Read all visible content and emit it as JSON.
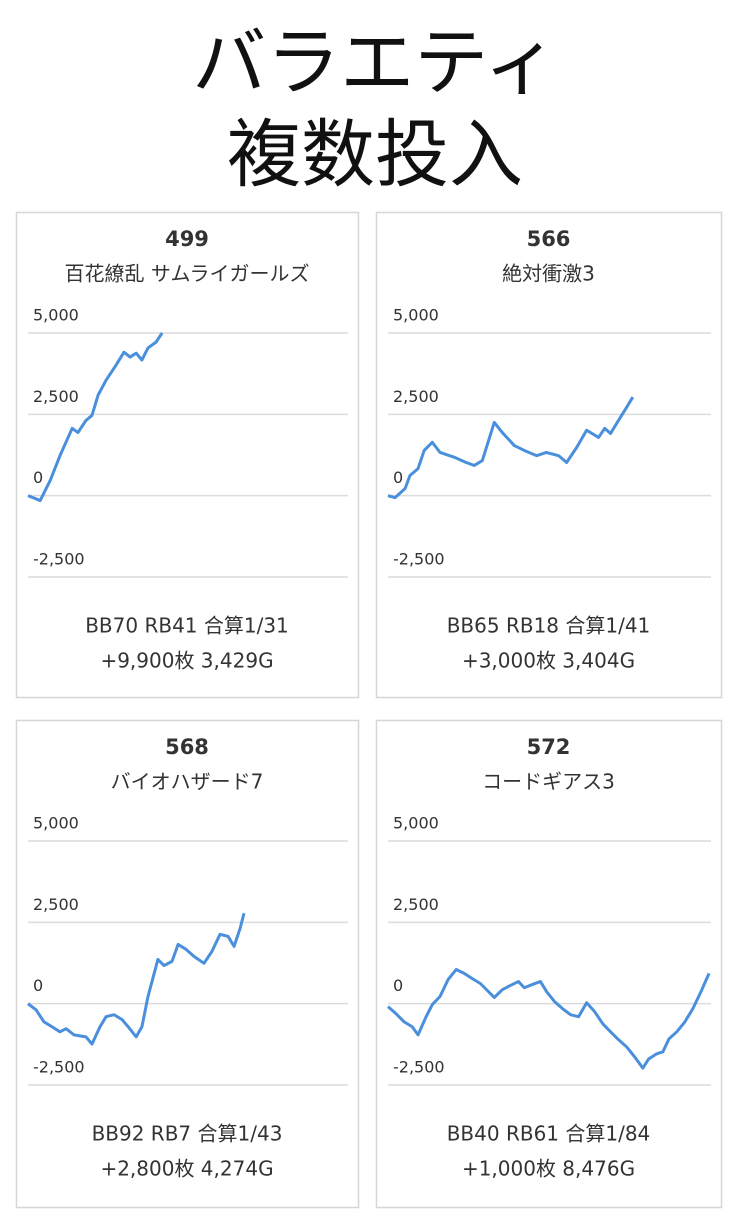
{
  "header": {
    "lines": [
      "バラエティ",
      "複数投入"
    ]
  },
  "chart_data": [
    {
      "type": "line",
      "title": "499",
      "subtitle": "百花繚乱 サムライガールズ",
      "annotations": [
        "BB70 RB41 合算1/31",
        "+9,900枚 3,429G"
      ],
      "color": "#4a8fdc",
      "grid": true,
      "xlim": [
        0,
        100
      ],
      "ylim": [
        -2500,
        5000
      ],
      "yticks": [
        {
          "value": -2500,
          "label": "-2,500"
        },
        0,
        {
          "value": 2500,
          "label": "2,500"
        },
        {
          "value": 5000,
          "label": "5,000"
        }
      ],
      "x": [
        0,
        3.8,
        6.9,
        10,
        13.8,
        15.6,
        18.1,
        20,
        21.9,
        24.4,
        27.5,
        30,
        31.9,
        33.8,
        35.6,
        37.5,
        40,
        41.9
      ],
      "values": [
        0,
        -150,
        460,
        1230,
        2070,
        1940,
        2310,
        2470,
        3090,
        3550,
        4010,
        4410,
        4260,
        4380,
        4170,
        4540,
        4720,
        5000
      ]
    },
    {
      "type": "line",
      "title": "566",
      "subtitle": "絶対衝激3",
      "annotations": [
        "BB65 RB18 合算1/41",
        "+3,000枚 3,404G"
      ],
      "color": "#4a8fdc",
      "grid": true,
      "xlim": [
        0,
        100
      ],
      "ylim": [
        -2500,
        5000
      ],
      "yticks": [
        {
          "value": -2500,
          "label": "-2,500"
        },
        0,
        {
          "value": 2500,
          "label": "2,500"
        },
        {
          "value": 5000,
          "label": "5,000"
        }
      ],
      "x": [
        0,
        2.2,
        5.3,
        6.8,
        9.3,
        11.2,
        13.7,
        16.1,
        20.8,
        24.2,
        26.7,
        29.2,
        32.9,
        35.4,
        39.1,
        42.2,
        46,
        49,
        52.8,
        55.3,
        58.4,
        61.5,
        65.2,
        67.1,
        68.9,
        71.4,
        73.9,
        75.8
      ],
      "values": [
        0,
        -60,
        220,
        620,
        830,
        1390,
        1640,
        1330,
        1170,
        1020,
        930,
        1080,
        2250,
        1940,
        1540,
        1390,
        1230,
        1330,
        1230,
        1020,
        1480,
        2010,
        1790,
        2070,
        1910,
        2320,
        2720,
        3030
      ]
    },
    {
      "type": "line",
      "title": "568",
      "subtitle": "バイオハザード7",
      "annotations": [
        "BB92 RB7 合算1/43",
        "+2,800枚 4,274G"
      ],
      "color": "#4a8fdc",
      "grid": true,
      "xlim": [
        0,
        100
      ],
      "ylim": [
        -2500,
        5000
      ],
      "yticks": [
        {
          "value": -2500,
          "label": "-2,500"
        },
        0,
        {
          "value": 2500,
          "label": "2,500"
        },
        {
          "value": 5000,
          "label": "5,000"
        }
      ],
      "x": [
        0,
        2.5,
        5,
        7.5,
        10,
        11.9,
        14.4,
        18.1,
        20,
        22.5,
        24.4,
        26.9,
        29.4,
        31.3,
        33.8,
        35.6,
        37.5,
        40.6,
        42.5,
        45,
        46.9,
        49.4,
        51.9,
        55,
        57.5,
        60,
        62.5,
        64.4,
        66.3,
        67.5
      ],
      "values": [
        0,
        -190,
        -560,
        -710,
        -865,
        -770,
        -960,
        -1020,
        -1240,
        -710,
        -400,
        -340,
        -490,
        -710,
        -1020,
        -710,
        220,
        1360,
        1170,
        1300,
        1820,
        1670,
        1450,
        1240,
        1610,
        2130,
        2070,
        1760,
        2320,
        2780
      ]
    },
    {
      "type": "line",
      "title": "572",
      "subtitle": "コードギアス3",
      "annotations": [
        "BB40 RB61 合算1/84",
        "+1,000枚 8,476G"
      ],
      "color": "#4a8fdc",
      "grid": true,
      "xlim": [
        0,
        100
      ],
      "ylim": [
        -2500,
        5000
      ],
      "yticks": [
        {
          "value": -2500,
          "label": "-2,500"
        },
        0,
        {
          "value": 2500,
          "label": "2,500"
        },
        {
          "value": 5000,
          "label": "5,000"
        }
      ],
      "x": [
        0,
        2.5,
        5,
        7.5,
        9.3,
        11.8,
        13.7,
        16.1,
        18.6,
        21.1,
        23.6,
        26.1,
        28.6,
        31.1,
        32.9,
        35.4,
        37.9,
        40.4,
        42.2,
        44.7,
        47.2,
        49.1,
        51.6,
        54,
        56.5,
        59,
        61.5,
        64,
        66.5,
        68.9,
        71.4,
        73.9,
        76.4,
        78.9,
        80.7,
        83.2,
        85.1,
        87,
        89.4,
        91.9,
        94.4,
        96.9,
        99.4
      ],
      "values": [
        -90,
        -310,
        -560,
        -710,
        -960,
        -400,
        -30,
        220,
        740,
        1050,
        930,
        770,
        620,
        370,
        190,
        430,
        560,
        680,
        490,
        590,
        680,
        370,
        60,
        -150,
        -340,
        -400,
        30,
        -250,
        -620,
        -865,
        -1110,
        -1330,
        -1640,
        -1980,
        -1700,
        -1540,
        -1480,
        -1080,
        -865,
        -560,
        -150,
        370,
        930
      ]
    }
  ]
}
